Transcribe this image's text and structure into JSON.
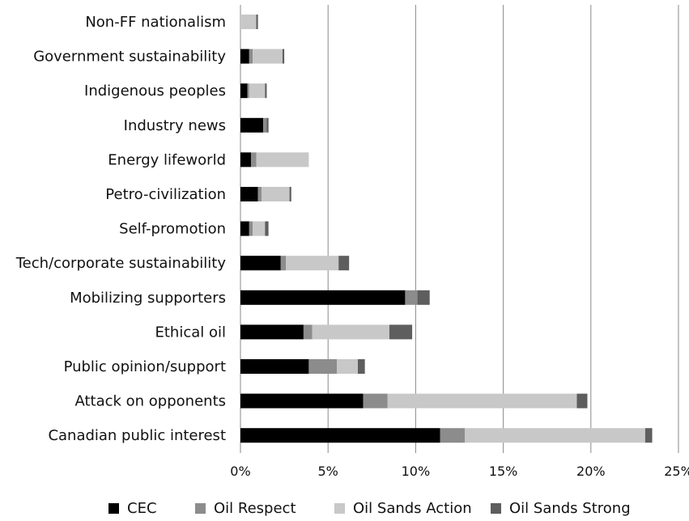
{
  "chart_data": {
    "type": "bar",
    "orientation": "horizontal",
    "stacked": true,
    "categories": [
      "Non-FF nationalism",
      "Government sustainability",
      "Indigenous peoples",
      "Industry news",
      "Energy lifeworld",
      "Petro-civilization",
      "Self-promotion",
      "Tech/corporate sustainability",
      "Mobilizing supporters",
      "Ethical oil",
      "Public opinion/support",
      "Attack on opponents",
      "Canadian public interest"
    ],
    "series": [
      {
        "name": "CEC",
        "color": "#000000",
        "values": [
          0.0,
          0.5,
          0.4,
          1.3,
          0.6,
          1.0,
          0.5,
          2.3,
          9.4,
          3.6,
          3.9,
          7.0,
          11.4
        ]
      },
      {
        "name": "Oil Respect",
        "color": "#8c8c8c",
        "values": [
          0.0,
          0.2,
          0.1,
          0.2,
          0.3,
          0.2,
          0.2,
          0.3,
          0.7,
          0.5,
          1.6,
          1.4,
          1.4
        ]
      },
      {
        "name": "Oil Sands Action",
        "color": "#c8c8c8",
        "values": [
          0.9,
          1.7,
          0.9,
          0.0,
          3.0,
          1.6,
          0.7,
          3.0,
          0.0,
          4.4,
          1.2,
          10.8,
          10.3
        ]
      },
      {
        "name": "Oil Sands Strong",
        "color": "#5e5e5e",
        "values": [
          0.1,
          0.1,
          0.1,
          0.1,
          0.0,
          0.1,
          0.2,
          0.6,
          0.7,
          1.3,
          0.4,
          0.6,
          0.4
        ]
      }
    ],
    "x_ticks": [
      "0%",
      "5%",
      "10%",
      "15%",
      "20%",
      "25%"
    ],
    "xlim": [
      0,
      25
    ],
    "grid": "vertical",
    "legend_position": "bottom"
  }
}
